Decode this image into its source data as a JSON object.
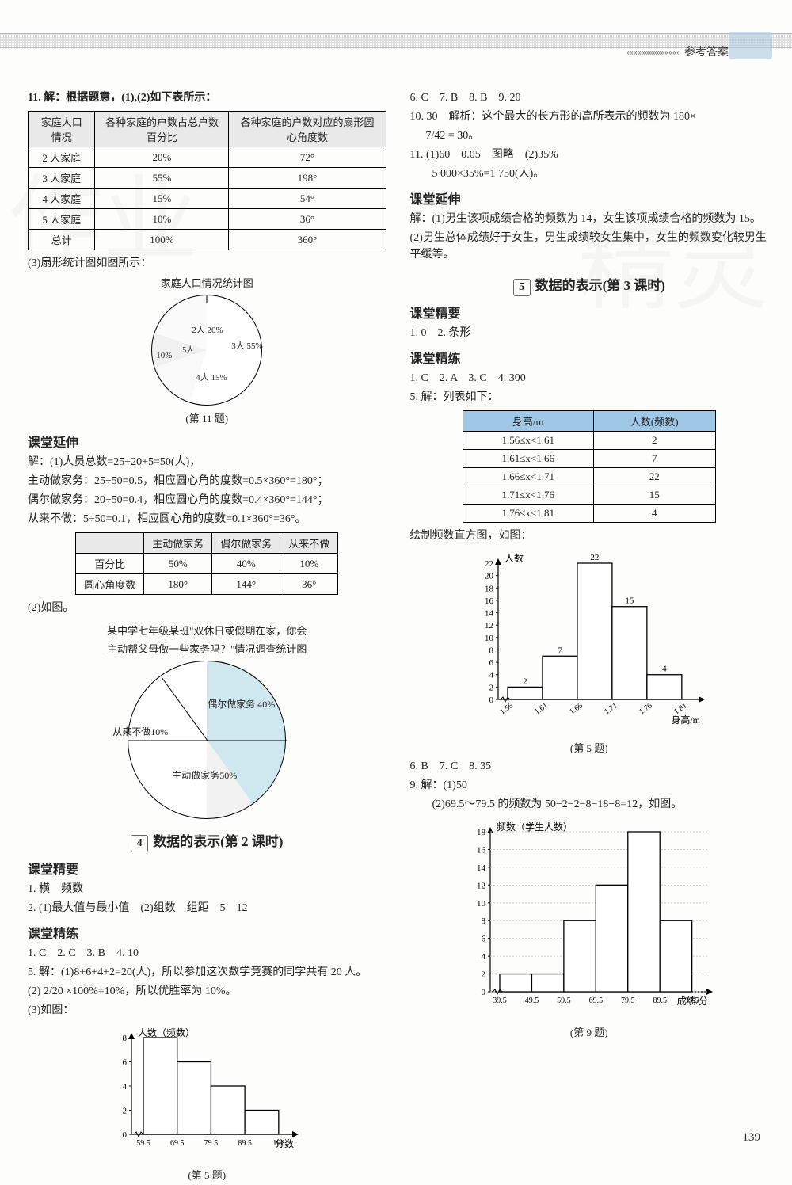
{
  "header": {
    "tab_label": "参考答案"
  },
  "page_number": "139",
  "left": {
    "q11_intro": "11. 解：根据题意，(1),(2)如下表所示：",
    "table1": {
      "headers": [
        "家庭人口情况",
        "各种家庭的户数占总户数百分比",
        "各种家庭的户数对应的扇形圆心角度数"
      ],
      "rows": [
        [
          "2 人家庭",
          "20%",
          "72°"
        ],
        [
          "3 人家庭",
          "55%",
          "198°"
        ],
        [
          "4 人家庭",
          "15%",
          "54°"
        ],
        [
          "5 人家庭",
          "10%",
          "36°"
        ],
        [
          "总计",
          "100%",
          "360°"
        ]
      ]
    },
    "q11_3": "(3)扇形统计图如图所示：",
    "pie1": {
      "title": "家庭人口情况统计图",
      "slices": [
        {
          "label": "3人 55%",
          "value": 55,
          "color": "#ffffff"
        },
        {
          "label": "4人 15%",
          "value": 15,
          "color": "#ffffff"
        },
        {
          "label": "5人 10%",
          "value": 10,
          "color": "#ffffff"
        },
        {
          "label": "2人 20%",
          "value": 20,
          "color": "#ffffff"
        }
      ],
      "caption": "(第 11 题)"
    },
    "kt_ext_title": "课堂延伸",
    "ext_lines": [
      "解：(1)人员总数=25+20+5=50(人)，",
      "主动做家务：25÷50=0.5，相应圆心角的度数=0.5×360°=180°；",
      "偶尔做家务：20÷50=0.4，相应圆心角的度数=0.4×360°=144°；",
      "从来不做：5÷50=0.1，相应圆心角的度数=0.1×360°=36°。"
    ],
    "table2": {
      "headers": [
        "",
        "主动做家务",
        "偶尔做家务",
        "从来不做"
      ],
      "rows": [
        [
          "百分比",
          "50%",
          "40%",
          "10%"
        ],
        [
          "圆心角度数",
          "180°",
          "144°",
          "36°"
        ]
      ]
    },
    "ext_2": "(2)如图。",
    "pie2": {
      "title_l1": "某中学七年级某班\"双休日或假期在家，你会",
      "title_l2": "主动帮父母做一些家务吗？\"情况调查统计图",
      "labels": {
        "a": "偶尔做家务 40%",
        "b": "从来不做10%",
        "c": "主动做家务50%"
      },
      "colors": {
        "a": "#cfe7ef",
        "b": "#f2f2f2",
        "c": "#ffffff"
      }
    },
    "chapter4": "数据的表示(第 2 课时)",
    "chapter4_num": "4",
    "jy_title": "课堂精要",
    "jy_lines": [
      "1. 横　频数",
      "2. (1)最大值与最小值　(2)组数　组距　5　12"
    ],
    "jl_title": "课堂精练",
    "jl_lines": [
      "1. C　2. C　3. B　4. 10",
      "5. 解：(1)8+6+4+2=20(人)，所以参加这次数学竞赛的同学共有 20 人。",
      "(2) 2/20 ×100%=10%，所以优胜率为 10%。",
      "(3)如图："
    ],
    "hist1": {
      "ylabel": "人数（频数）",
      "xlabel": "分数",
      "xticks": [
        "59.5",
        "69.5",
        "79.5",
        "89.5",
        "100"
      ],
      "yticks": [
        0,
        2,
        4,
        6,
        8
      ],
      "values": [
        8,
        6,
        4,
        2
      ],
      "xlim": [
        59.5,
        100
      ],
      "ylim": [
        0,
        8
      ],
      "bar_color": "#ffffff",
      "stroke": "#000000",
      "caption": "(第 5 题)"
    }
  },
  "right": {
    "row_ans": "6. C　7. B　8. B　9. 20",
    "q10_l1": "10. 30　解析：这个最大的长方形的高所表示的频数为 180×",
    "q10_l2": "7/42 = 30。",
    "q11": "11. (1)60　0.05　图略　(2)35%",
    "q11b": "　　5 000×35%=1 750(人)。",
    "ext_title": "课堂延伸",
    "ext_l1": "解：(1)男生该项成绩合格的频数为 14，女生该项成绩合格的频数为 15。",
    "ext_l2": "(2)男生总体成绩好于女生，男生成绩较女生集中，女生的频数变化较男生平缓等。",
    "chapter5": "数据的表示(第 3 课时)",
    "chapter5_num": "5",
    "jy_title": "课堂精要",
    "jy_line": "1. 0　2. 条形",
    "jl_title": "课堂精练",
    "jl_line": "1. C　2. A　3. C　4. 300",
    "q5_intro": "5. 解：列表如下：",
    "table3": {
      "headers": [
        "身高/m",
        "人数(频数)"
      ],
      "rows": [
        [
          "1.56≤x<1.61",
          "2"
        ],
        [
          "1.61≤x<1.66",
          "7"
        ],
        [
          "1.66≤x<1.71",
          "22"
        ],
        [
          "1.71≤x<1.76",
          "15"
        ],
        [
          "1.76≤x<1.81",
          "4"
        ]
      ],
      "header_bg": "#9fc7e6"
    },
    "q5_draw": "绘制频数直方图，如图：",
    "hist2": {
      "ylabel": "人数",
      "xlabel": "身高/m",
      "xticks": [
        "1.56",
        "1.61",
        "1.66",
        "1.71",
        "1.76",
        "1.81"
      ],
      "yticks": [
        0,
        2,
        4,
        6,
        8,
        10,
        12,
        14,
        16,
        18,
        20,
        22
      ],
      "values": [
        2,
        7,
        22,
        15,
        4
      ],
      "value_labels": [
        "2",
        "7",
        "22",
        "15",
        "4"
      ],
      "ylim": [
        0,
        22
      ],
      "caption": "(第 5 题)"
    },
    "row_ans2": "6. B　7. C　8. 35",
    "q9_1": "9. 解：(1)50",
    "q9_2": "　　(2)69.5～79.5 的频数为 50−2−2−8−18−8=12，如图。",
    "hist3": {
      "ylabel": "频数（学生人数）",
      "xlabel": "成绩/分",
      "xticks": [
        "39.5",
        "49.5",
        "59.5",
        "69.5",
        "79.5",
        "89.5",
        "99.5"
      ],
      "yticks": [
        0,
        2,
        4,
        6,
        8,
        10,
        12,
        14,
        16,
        18
      ],
      "values": [
        2,
        2,
        8,
        12,
        18,
        8
      ],
      "ylim": [
        0,
        18
      ],
      "caption": "(第 9 题)"
    }
  }
}
